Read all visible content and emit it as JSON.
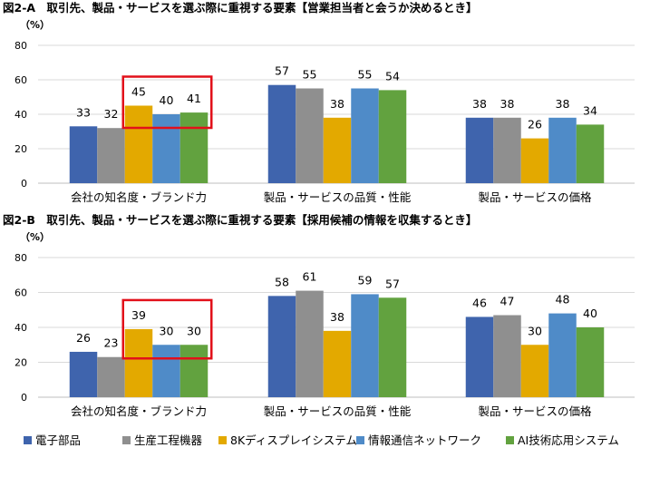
{
  "chart_data": [
    {
      "type": "bar",
      "title": "図2-A　取引先、製品・サービスを選ぶ際に重視する要素【営業担当者と会うか決めるとき】",
      "unit_label": "（%）",
      "categories": [
        "会社の知名度・ブランド力",
        "製品・サービスの品質・性能",
        "製品・サービスの価格"
      ],
      "ylim": [
        0,
        80
      ],
      "yticks": [
        0,
        20,
        40,
        60,
        80
      ],
      "series": [
        {
          "name": "電子部品",
          "values": [
            33,
            57,
            38
          ]
        },
        {
          "name": "生産工程機器",
          "values": [
            32,
            55,
            38
          ]
        },
        {
          "name": "8Kディスプレイシステム",
          "values": [
            45,
            38,
            26
          ]
        },
        {
          "name": "情報通信ネットワーク",
          "values": [
            40,
            55,
            38
          ]
        },
        {
          "name": "AI技術応用システム",
          "values": [
            41,
            54,
            34
          ]
        }
      ],
      "highlight_category": 0,
      "highlight_series": [
        2,
        3,
        4
      ]
    },
    {
      "type": "bar",
      "title": "図2-B　取引先、製品・サービスを選ぶ際に重視する要素【採用候補の情報を収集するとき】",
      "unit_label": "（%）",
      "categories": [
        "会社の知名度・ブランド力",
        "製品・サービスの品質・性能",
        "製品・サービスの価格"
      ],
      "ylim": [
        0,
        80
      ],
      "yticks": [
        0,
        20,
        40,
        60,
        80
      ],
      "series": [
        {
          "name": "電子部品",
          "values": [
            26,
            58,
            46
          ]
        },
        {
          "name": "生産工程機器",
          "values": [
            23,
            61,
            47
          ]
        },
        {
          "name": "8Kディスプレイシステム",
          "values": [
            39,
            38,
            30
          ]
        },
        {
          "name": "情報通信ネットワーク",
          "values": [
            30,
            59,
            48
          ]
        },
        {
          "name": "AI技術応用システム",
          "values": [
            30,
            57,
            40
          ]
        }
      ],
      "highlight_category": 0,
      "highlight_series": [
        2,
        3,
        4
      ]
    }
  ],
  "legend": [
    "電子部品",
    "生産工程機器",
    "8Kディスプレイシステム",
    "情報通信ネットワーク",
    "AI技術応用システム"
  ],
  "colors": [
    "#3f64ad",
    "#8f8f8f",
    "#e3a900",
    "#4f8bc8",
    "#62a23f"
  ],
  "highlight_color": "#e2101a",
  "grid": true
}
